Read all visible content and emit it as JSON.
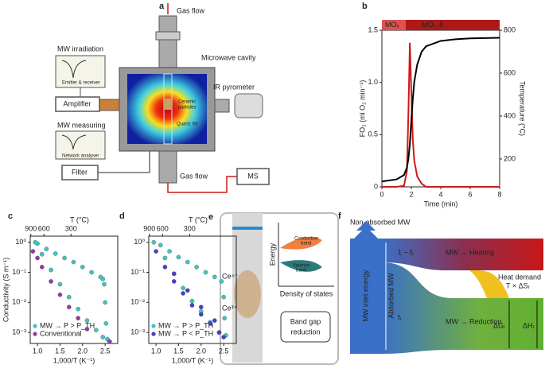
{
  "figure": {
    "panel_labels": [
      "a",
      "e",
      "f"
    ],
    "a": {
      "gas_flow_in": "Gas flow",
      "cavity": "Microwave cavity",
      "mw_irradiation": "MW irradiation",
      "emitter": "Emitter & receiver",
      "amplifier": "Amplifier",
      "particles": [
        "Ceramic",
        "particles"
      ],
      "frit": "Quartz frit",
      "pyrometer": "IR pyrometer",
      "mw_measuring": "MW measuring",
      "analyser": "Network analyser",
      "filter": "Filter",
      "gas_flow_out": "Gas flow",
      "ms": "MS"
    },
    "e": {
      "ce4": "Ce⁴⁺",
      "ce3": "Ce³⁺",
      "energy": "Energy",
      "conduction": [
        "Conduction",
        "band"
      ],
      "valence": [
        "Valence",
        "band"
      ],
      "dos": "Density of states",
      "bandgap": [
        "Band gap",
        "reduction"
      ]
    },
    "f": {
      "non_absorbed": "Non-absorbed MW",
      "inlet": "MW inlet energy",
      "absorbed": "Absorbed   MW",
      "one_minus_fr": "1 − fᵣ",
      "fr": "fᵣ",
      "heating": "MW → Heating",
      "heat_demand": "Heat demand",
      "tds": "T × ΔSᵣ",
      "reduction": "MW → Reduction",
      "dg": "ΔGᵣ",
      "dh": "ΔHᵣ"
    }
  },
  "chart_data": [
    {
      "type": "line",
      "panel_label": "b",
      "header": [
        "MOₓ",
        "MOₓ₋δ"
      ],
      "x_label": "Time (min)",
      "y_label": "FO₂ (ml O₂ min⁻¹)",
      "y2_label": "Temperature (°C)",
      "x": [
        0,
        1,
        1.5,
        1.7,
        1.8,
        1.9,
        2.0,
        2.1,
        2.2,
        2.4,
        2.7,
        3,
        4,
        5,
        6,
        8
      ],
      "series": [
        {
          "color": "#d01818",
          "values": [
            0,
            0,
            0.01,
            0.15,
            0.7,
            1.38,
            0.9,
            0.45,
            0.25,
            0.1,
            0.03,
            0,
            0,
            0,
            0,
            0
          ]
        },
        {
          "color": "#000000",
          "axis": "y2",
          "values": [
            95,
            105,
            125,
            160,
            200,
            270,
            380,
            480,
            560,
            640,
            700,
            725,
            750,
            758,
            762,
            765
          ]
        }
      ],
      "xlim": [
        0,
        8
      ],
      "xticks": [
        0,
        2,
        4,
        6,
        8
      ],
      "ylim": [
        0,
        1.5
      ],
      "yticks": [
        0,
        0.5,
        {
          "value": 1,
          "label": "1.0"
        },
        1.5
      ],
      "y2lim": [
        70,
        800
      ],
      "y2ticks": [
        200,
        400,
        600,
        800
      ]
    },
    {
      "type": "scatter",
      "panel_label": "c",
      "x_label": "1,000/T (K⁻¹)",
      "y_label": "Conductivity (S m⁻¹)",
      "x2_label": "T (°C)",
      "log_y": true,
      "xlim": [
        0.84,
        2.78
      ],
      "ylim": [
        0.00043,
        1.6
      ],
      "xticks": [
        {
          "value": 1,
          "label": "1.0"
        },
        1.5,
        {
          "value": 2,
          "label": "2.0"
        },
        2.5
      ],
      "x2ticks": [
        {
          "value": 0.853,
          "label": "900"
        },
        {
          "value": 1.145,
          "label": "600"
        },
        {
          "value": 1.745,
          "label": "300"
        }
      ],
      "yticks": [
        {
          "value": 0.001,
          "label": "10⁻³"
        },
        {
          "value": 0.01,
          "label": "10⁻²"
        },
        {
          "value": 0.1,
          "label": "10⁻¹"
        },
        {
          "value": 1,
          "label": "10⁰"
        }
      ],
      "series": [
        {
          "name": "MW → P > P_TH",
          "color": "#3cc8c0",
          "x": [
            2.55,
            2.52,
            2.5,
            2.48,
            2.45,
            2.4,
            2.2,
            2.0,
            1.8,
            1.6,
            1.4,
            1.2,
            1.0,
            0.95,
            1.1,
            1.3,
            1.5,
            1.7,
            1.9,
            2.1,
            2.3,
            2.45
          ],
          "values": [
            0.0006,
            0.002,
            0.01,
            0.04,
            0.06,
            0.07,
            0.1,
            0.15,
            0.22,
            0.3,
            0.42,
            0.6,
            0.9,
            1.0,
            0.4,
            0.12,
            0.04,
            0.015,
            0.006,
            0.0025,
            0.0012,
            0.0007
          ]
        },
        {
          "name": "Conventional",
          "color": "#8e3ca8",
          "x": [
            0.9,
            1.0,
            1.1,
            1.3,
            1.5,
            1.7,
            1.9,
            2.1,
            2.6
          ],
          "values": [
            0.5,
            0.3,
            0.15,
            0.05,
            0.018,
            0.007,
            0.003,
            0.0013,
            0.0005
          ]
        }
      ]
    },
    {
      "type": "scatter",
      "panel_label": "d",
      "x_label": "1,000/T (K⁻¹)",
      "x2_label": "T (°C)",
      "log_y": true,
      "xlim": [
        0.84,
        2.78
      ],
      "ylim": [
        0.00043,
        1.6
      ],
      "xticks": [
        {
          "value": 1,
          "label": "1.0"
        },
        1.5,
        {
          "value": 2,
          "label": "2.0"
        },
        2.5
      ],
      "x2ticks": [
        {
          "value": 0.853,
          "label": "900"
        },
        {
          "value": 1.145,
          "label": "600"
        },
        {
          "value": 1.745,
          "label": "300"
        }
      ],
      "yticks": [
        {
          "value": 0.001,
          "label": "10⁻³"
        },
        {
          "value": 0.01,
          "label": "10⁻²"
        },
        {
          "value": 0.1,
          "label": "10⁻¹"
        },
        {
          "value": 1,
          "label": "10⁰"
        }
      ],
      "series": [
        {
          "name": "MW → P > P_TH",
          "color": "#3cc8c0",
          "x": [
            2.55,
            2.52,
            2.5,
            2.45,
            2.3,
            2.1,
            1.9,
            1.7,
            1.5,
            1.3,
            1.1,
            0.95,
            1.2,
            1.4,
            1.6,
            1.8,
            2.0,
            2.2,
            2.4
          ],
          "values": [
            0.0008,
            0.003,
            0.015,
            0.05,
            0.07,
            0.1,
            0.15,
            0.22,
            0.32,
            0.5,
            0.8,
            1.0,
            0.3,
            0.09,
            0.03,
            0.011,
            0.005,
            0.0022,
            0.001
          ]
        },
        {
          "name": "MW → P < P_TH",
          "color": "#4a3cc8",
          "x": [
            1.0,
            1.2,
            1.4,
            1.6,
            1.8,
            2.0,
            2.2,
            2.4,
            2.5,
            2.3,
            2.0,
            1.7,
            1.4
          ],
          "values": [
            0.5,
            0.15,
            0.05,
            0.02,
            0.008,
            0.004,
            0.002,
            0.001,
            0.0007,
            0.0025,
            0.007,
            0.025,
            0.09
          ]
        }
      ]
    }
  ]
}
